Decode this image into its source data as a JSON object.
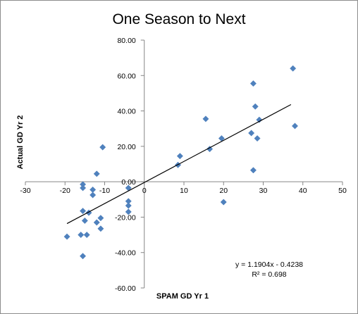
{
  "chart_data": {
    "type": "scatter",
    "title": "One Season to Next",
    "xlabel": "SPAM GD Yr 1",
    "ylabel": "Actual GD Yr 2",
    "xlim": [
      -30,
      50
    ],
    "ylim": [
      -60,
      80
    ],
    "x_ticks": [
      -30,
      -20,
      -10,
      0,
      10,
      20,
      30,
      40,
      50
    ],
    "y_ticks": [
      80,
      60,
      40,
      20,
      0,
      -20,
      -40,
      -60
    ],
    "x_tick_labels": [
      "-30",
      "-20",
      "-10",
      "0",
      "10",
      "20",
      "30",
      "40",
      "50"
    ],
    "y_tick_labels": [
      "80.00",
      "60.00",
      "40.00",
      "20.00",
      "0.00",
      "-20.00",
      "-40.00",
      "-60.00"
    ],
    "grid": false,
    "legend": "none",
    "series": [
      {
        "color": "#4f81bd",
        "marker": "diamond",
        "points": [
          [
            -19.5,
            -31
          ],
          [
            -16,
            -30
          ],
          [
            -15.5,
            -42
          ],
          [
            -15.5,
            -1.5
          ],
          [
            -15.5,
            -3.5
          ],
          [
            -15.5,
            -16.5
          ],
          [
            -15,
            -22
          ],
          [
            -14.5,
            -30
          ],
          [
            -14,
            -17.5
          ],
          [
            -13,
            -7.5
          ],
          [
            -13,
            -4.5
          ],
          [
            -12,
            -23
          ],
          [
            -12,
            4.5
          ],
          [
            -11,
            -20.5
          ],
          [
            -11,
            -26.5
          ],
          [
            -10.5,
            19.5
          ],
          [
            -4,
            -3.5
          ],
          [
            -4,
            -11
          ],
          [
            -4,
            -13.5
          ],
          [
            -4,
            -17
          ],
          [
            8.5,
            9.5
          ],
          [
            9,
            14.5
          ],
          [
            15.5,
            35.5
          ],
          [
            16.5,
            18.5
          ],
          [
            19.5,
            24.5
          ],
          [
            20,
            -11.5
          ],
          [
            27,
            27.5
          ],
          [
            27.5,
            6.5
          ],
          [
            27.5,
            55.5
          ],
          [
            28,
            42.5
          ],
          [
            28.5,
            24.5
          ],
          [
            29,
            35
          ],
          [
            37.5,
            64
          ],
          [
            38,
            31.5
          ]
        ]
      }
    ],
    "trendline": {
      "slope": 1.1904,
      "intercept": -0.4238,
      "x_range": [
        -19.5,
        37
      ],
      "color": "#000000",
      "equation": "y = 1.1904x - 0.4238",
      "r_squared": "R² = 0.698"
    }
  }
}
